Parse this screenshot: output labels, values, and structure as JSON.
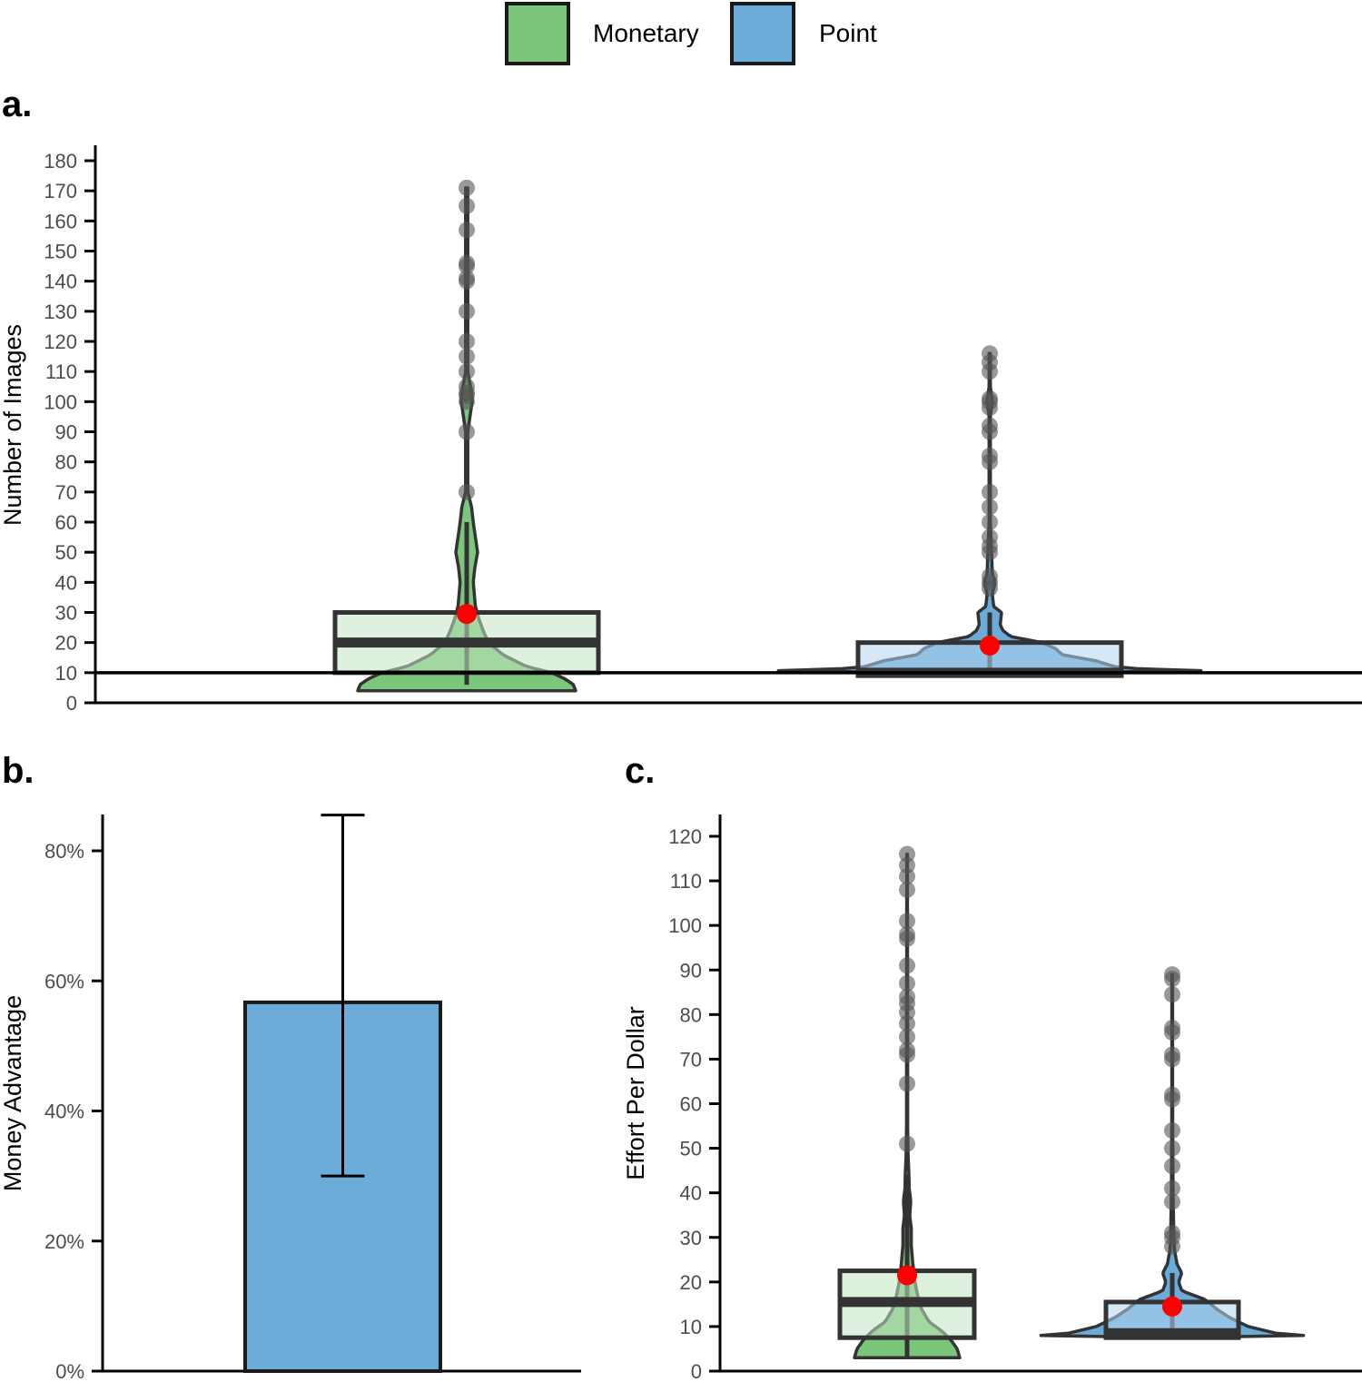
{
  "legend": {
    "items": [
      {
        "label": "Monetary",
        "color": "#7bc67b"
      },
      {
        "label": "Point",
        "color": "#6aabd8"
      }
    ]
  },
  "colors": {
    "monetary": "#7bc67b",
    "monetary_box": "#c2e5c2",
    "point": "#6aabd8",
    "point_box": "#b4d6ee",
    "outline": "#333333",
    "mean": "#ff0000",
    "outlier": "#555555"
  },
  "chart_data": [
    {
      "panel": "a.",
      "type": "violin-box",
      "ylabel": "Number of Images",
      "ylim": [
        0,
        185
      ],
      "yticks": [
        0,
        10,
        20,
        30,
        40,
        50,
        60,
        70,
        80,
        90,
        100,
        110,
        120,
        130,
        140,
        150,
        160,
        170,
        180
      ],
      "reference_line": 10,
      "groups": [
        {
          "name": "Monetary",
          "box": {
            "q1": 10,
            "median": 20,
            "q3": 30
          },
          "whisker": [
            6,
            60
          ],
          "mean": 29.5,
          "outliers": [
            70,
            90,
            100,
            102,
            103,
            105,
            110,
            115,
            120,
            130,
            140,
            141,
            145,
            146,
            157,
            165,
            171
          ],
          "density": [
            [
              4,
              1.0
            ],
            [
              6,
              0.98
            ],
            [
              8,
              0.9
            ],
            [
              10,
              0.78
            ],
            [
              12,
              0.55
            ],
            [
              16,
              0.33
            ],
            [
              20,
              0.2
            ],
            [
              24,
              0.15
            ],
            [
              28,
              0.11
            ],
            [
              32,
              0.08
            ],
            [
              36,
              0.07
            ],
            [
              40,
              0.06
            ],
            [
              45,
              0.075
            ],
            [
              50,
              0.1
            ],
            [
              55,
              0.08
            ],
            [
              60,
              0.06
            ],
            [
              65,
              0.045
            ],
            [
              70,
              0.01
            ],
            [
              80,
              0.01
            ],
            [
              90,
              0.01
            ],
            [
              95,
              0.03
            ],
            [
              100,
              0.05
            ],
            [
              104,
              0.04
            ],
            [
              110,
              0.01
            ],
            [
              130,
              0.01
            ],
            [
              171,
              0.01
            ]
          ]
        },
        {
          "name": "Point",
          "box": {
            "q1": 9,
            "median": 10,
            "q3": 20
          },
          "whisker": [
            9,
            30
          ],
          "mean": 19,
          "outliers": [
            38,
            40,
            42,
            50,
            52,
            55,
            60,
            65,
            70,
            80,
            82,
            90,
            92,
            98,
            100,
            101,
            110,
            113,
            116
          ],
          "density": [
            [
              10,
              0.03
            ],
            [
              10,
              2.4
            ],
            [
              11,
              1.2
            ],
            [
              12,
              0.95
            ],
            [
              14,
              0.8
            ],
            [
              16,
              0.55
            ],
            [
              18,
              0.5
            ],
            [
              20,
              0.4
            ],
            [
              22,
              0.16
            ],
            [
              24,
              0.1
            ],
            [
              26,
              0.08
            ],
            [
              30,
              0.09
            ],
            [
              32,
              0.03
            ],
            [
              36,
              0.02
            ],
            [
              40,
              0.04
            ],
            [
              43,
              0.02
            ],
            [
              60,
              0.005
            ],
            [
              95,
              0.005
            ],
            [
              100,
              0.02
            ],
            [
              105,
              0.005
            ],
            [
              116,
              0.005
            ]
          ]
        }
      ]
    },
    {
      "panel": "b.",
      "type": "bar",
      "ylabel": "Money Advantage",
      "ylim": [
        0,
        0.86
      ],
      "yticks": [
        0,
        0.2,
        0.4,
        0.6,
        0.8
      ],
      "ytick_labels": [
        "0%",
        "20%",
        "40%",
        "60%",
        "80%"
      ],
      "categories": [
        ""
      ],
      "values": [
        0.567
      ],
      "error_low": [
        0.3
      ],
      "error_high": [
        0.855
      ]
    },
    {
      "panel": "c.",
      "type": "violin-box",
      "ylabel": "Effort Per Dollar",
      "ylim": [
        0,
        124
      ],
      "yticks": [
        0,
        10,
        20,
        30,
        40,
        50,
        60,
        70,
        80,
        90,
        100,
        110,
        120
      ],
      "groups": [
        {
          "name": "Monetary",
          "box": {
            "q1": 7.5,
            "median": 15.5,
            "q3": 22.5
          },
          "whisker": [
            3,
            44
          ],
          "mean": 21.5,
          "outliers": [
            51,
            64.5,
            71,
            72,
            75,
            78,
            80.5,
            82.5,
            84,
            87,
            91,
            97,
            98,
            101,
            108,
            111,
            113.5,
            116
          ],
          "density": [
            [
              3,
              1.0
            ],
            [
              5,
              0.95
            ],
            [
              7,
              0.83
            ],
            [
              9,
              0.66
            ],
            [
              11,
              0.42
            ],
            [
              14,
              0.27
            ],
            [
              17,
              0.2
            ],
            [
              20,
              0.15
            ],
            [
              24,
              0.11
            ],
            [
              28,
              0.08
            ],
            [
              32,
              0.08
            ],
            [
              35,
              0.05
            ],
            [
              38,
              0.07
            ],
            [
              41,
              0.04
            ],
            [
              44,
              0.035
            ],
            [
              48,
              0.02
            ],
            [
              55,
              0.01
            ],
            [
              65,
              0.01
            ],
            [
              75,
              0.01
            ],
            [
              116,
              0.005
            ]
          ]
        },
        {
          "name": "Point",
          "box": {
            "q1": 7.5,
            "median": 8.5,
            "q3": 15.5
          },
          "whisker": [
            7.5,
            22
          ],
          "mean": 14.5,
          "outliers": [
            28,
            30,
            31,
            38,
            41,
            46,
            50,
            54,
            61,
            62,
            70,
            71,
            76,
            77,
            84.5,
            88,
            89
          ],
          "density": [
            [
              7.5,
              0.03
            ],
            [
              7.5,
              2.0
            ],
            [
              8.5,
              1.3
            ],
            [
              10,
              0.95
            ],
            [
              12,
              0.72
            ],
            [
              14,
              0.55
            ],
            [
              16,
              0.42
            ],
            [
              18,
              0.12
            ],
            [
              20,
              0.08
            ],
            [
              22,
              0.12
            ],
            [
              24,
              0.06
            ],
            [
              27,
              0.03
            ],
            [
              30,
              0.02
            ],
            [
              40,
              0.01
            ],
            [
              60,
              0.005
            ],
            [
              89,
              0.005
            ]
          ]
        }
      ]
    }
  ]
}
